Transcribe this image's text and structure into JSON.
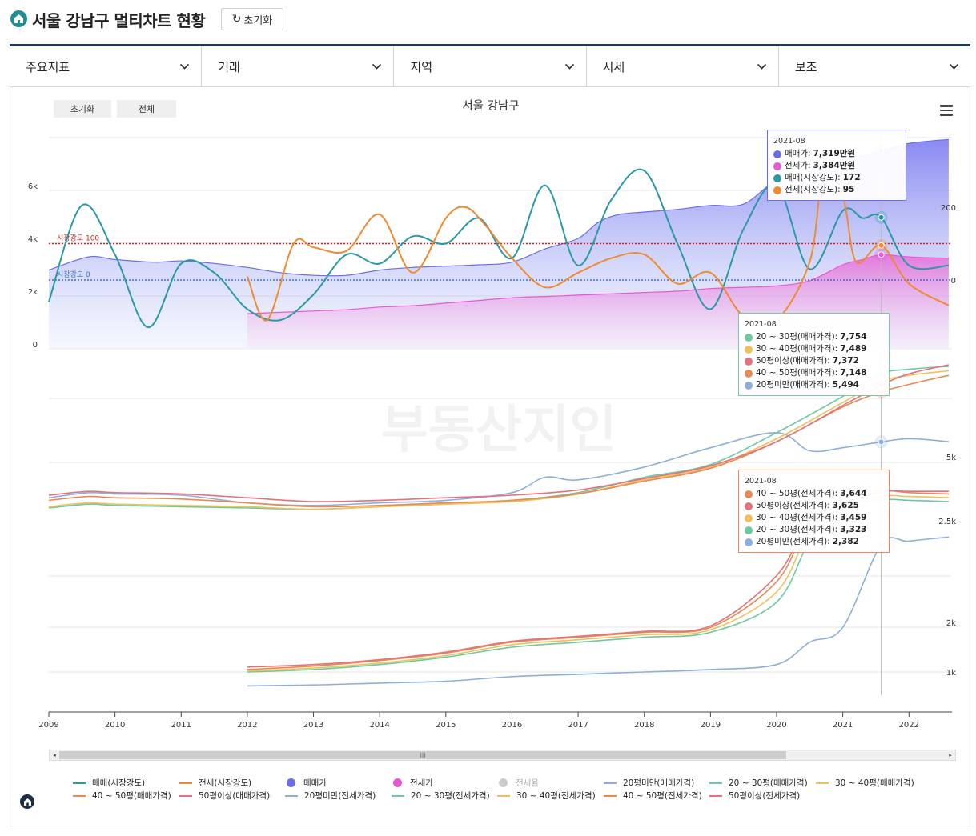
{
  "header": {
    "title": "서울 강남구 멀티차트 현황",
    "reset_label": "초기화"
  },
  "tabs": [
    {
      "label": "주요지표"
    },
    {
      "label": "거래"
    },
    {
      "label": "지역"
    },
    {
      "label": "시세"
    },
    {
      "label": "보조"
    }
  ],
  "chart": {
    "title": "서울 강남구",
    "reset_button": "초기화",
    "all_button": "전체",
    "watermark": "부동산지인"
  },
  "chart_data": {
    "type": "line",
    "x_axis": {
      "ticks": [
        "2009",
        "2010",
        "2011",
        "2012",
        "2013",
        "2014",
        "2015",
        "2016",
        "2017",
        "2018",
        "2019",
        "2020",
        "2021",
        "2022"
      ]
    },
    "panels": [
      {
        "name": "top",
        "left_axis_ticks": [
          "0",
          "2k",
          "4k",
          "6k"
        ],
        "right_axis_ticks": [
          "0",
          "200"
        ],
        "reference_lines": [
          {
            "label": "시장강도 100",
            "color": "#d42020"
          },
          {
            "label": "시장강도 0",
            "color": "#3a6fd0"
          }
        ],
        "series": [
          {
            "name": "매매가",
            "color": "#6b6ee8",
            "type": "area",
            "x": [
              2009.0,
              2009.6,
              2010.0,
              2010.6,
              2011.0,
              2011.5,
              2012.0,
              2012.5,
              2013.0,
              2013.5,
              2014.0,
              2014.5,
              2015.0,
              2015.5,
              2016.0,
              2016.5,
              2017.0,
              2017.3,
              2017.6,
              2018.0,
              2018.5,
              2019.0,
              2019.5,
              2020.0,
              2020.5,
              2021.0,
              2021.3,
              2021.58,
              2022.0,
              2022.6
            ],
            "values": [
              2800,
              3300,
              3200,
              3100,
              3150,
              3050,
              2900,
              2700,
              2600,
              2600,
              2800,
              2900,
              2950,
              3000,
              3100,
              3600,
              4000,
              4600,
              4900,
              5000,
              5100,
              5250,
              5300,
              6200,
              6400,
              7000,
              7150,
              7319,
              7600,
              7750
            ]
          },
          {
            "name": "전세가",
            "color": "#e659d4",
            "type": "area",
            "x": [
              2012.0,
              2012.5,
              2013.0,
              2013.5,
              2014.0,
              2014.5,
              2015.0,
              2015.5,
              2016.0,
              2016.5,
              2017.0,
              2017.5,
              2018.0,
              2018.5,
              2019.0,
              2019.5,
              2020.0,
              2020.5,
              2021.0,
              2021.3,
              2021.58,
              2022.0,
              2022.6
            ],
            "values": [
              1150,
              1200,
              1250,
              1300,
              1400,
              1450,
              1550,
              1650,
              1750,
              1800,
              1850,
              1900,
              1950,
              2000,
              2100,
              2150,
              2200,
              2400,
              3000,
              3200,
              3384,
              3300,
              3250
            ]
          },
          {
            "name": "매매(시장강도)",
            "color": "#2a98a5",
            "x": [
              2009.0,
              2009.5,
              2010.0,
              2010.5,
              2011.0,
              2011.5,
              2012.0,
              2012.5,
              2013.0,
              2013.5,
              2014.0,
              2014.5,
              2015.0,
              2015.5,
              2016.0,
              2016.5,
              2017.0,
              2017.5,
              2018.0,
              2018.5,
              2019.0,
              2019.5,
              2020.0,
              2020.5,
              2021.0,
              2021.3,
              2021.58,
              2022.0,
              2022.6
            ],
            "values": [
              -60,
              205,
              70,
              -130,
              45,
              20,
              -80,
              -110,
              -40,
              70,
              45,
              120,
              100,
              170,
              60,
              260,
              40,
              220,
              300,
              100,
              -80,
              140,
              260,
              30,
              190,
              170,
              172,
              40,
              40
            ]
          },
          {
            "name": "전세(시장강도)",
            "color": "#f08a2e",
            "x": [
              2012.0,
              2012.3,
              2012.7,
              2013.0,
              2013.5,
              2014.0,
              2014.5,
              2015.0,
              2015.3,
              2015.6,
              2016.0,
              2016.5,
              2017.0,
              2017.5,
              2018.0,
              2018.5,
              2019.0,
              2019.5,
              2020.0,
              2020.5,
              2020.7,
              2021.0,
              2021.2,
              2021.58,
              2022.0,
              2022.6
            ],
            "values": [
              10,
              -110,
              100,
              90,
              80,
              180,
              20,
              170,
              200,
              150,
              60,
              -20,
              20,
              60,
              70,
              -10,
              20,
              -100,
              -110,
              50,
              280,
              230,
              50,
              95,
              -10,
              -70
            ]
          }
        ]
      },
      {
        "name": "bottom",
        "right_axis_ticks": [
          "1k",
          "2k",
          "2.5k",
          "5k"
        ],
        "series": [
          {
            "name": "20평미만(매매가격)",
            "color": "#8eaedb",
            "x": [
              2009,
              2009.6,
              2010,
              2011,
              2012,
              2013,
              2014,
              2015,
              2016,
              2016.5,
              2017,
              2018,
              2019,
              2020,
              2020.5,
              2021,
              2021.58,
              2022,
              2022.6
            ],
            "values": [
              3400,
              3600,
              3550,
              3500,
              3200,
              3100,
              3200,
              3300,
              3600,
              4200,
              4100,
              4600,
              5300,
              5800,
              5200,
              5300,
              5494,
              5600,
              5500
            ]
          },
          {
            "name": "20~30평(매매가격)",
            "color": "#6cc9a0",
            "x": [
              2009,
              2009.6,
              2010,
              2011,
              2012,
              2013,
              2014,
              2015,
              2016,
              2017,
              2018,
              2019,
              2020,
              2021,
              2021.58,
              2022,
              2022.6
            ],
            "values": [
              3000,
              3150,
              3100,
              3050,
              3000,
              2950,
              3050,
              3150,
              3300,
              3600,
              4200,
              4700,
              5800,
              7000,
              7754,
              7900,
              8000
            ]
          },
          {
            "name": "30~40평(매매가격)",
            "color": "#f0c05c",
            "x": [
              2009,
              2009.6,
              2010,
              2011,
              2012,
              2013,
              2014,
              2015,
              2016,
              2017,
              2018,
              2019,
              2020,
              2021,
              2021.58,
              2022,
              2022.6
            ],
            "values": [
              3050,
              3200,
              3150,
              3100,
              3050,
              2950,
              3050,
              3150,
              3250,
              3550,
              4100,
              4600,
              5600,
              6800,
              7489,
              7700,
              7850
            ]
          },
          {
            "name": "40~50평(매매가격)",
            "color": "#e88a52",
            "x": [
              2009,
              2009.6,
              2010,
              2011,
              2012,
              2013,
              2014,
              2015,
              2016,
              2017,
              2018,
              2019,
              2020,
              2021,
              2021.58,
              2022,
              2022.6
            ],
            "values": [
              3300,
              3450,
              3400,
              3350,
              3200,
              3050,
              3100,
              3200,
              3300,
              3550,
              4050,
              4550,
              5500,
              6650,
              7148,
              7400,
              7700
            ]
          },
          {
            "name": "50평이상(매매가격)",
            "color": "#e5717e",
            "x": [
              2009,
              2009.6,
              2010,
              2011,
              2012,
              2013,
              2014,
              2015,
              2016,
              2017,
              2018,
              2019,
              2020,
              2021,
              2021.58,
              2022,
              2022.6
            ],
            "values": [
              3500,
              3650,
              3600,
              3550,
              3400,
              3250,
              3300,
              3400,
              3500,
              3700,
              4150,
              4650,
              5500,
              6700,
              7372,
              7750,
              8050
            ]
          },
          {
            "name": "20평미만(전세가격)",
            "color": "#8eaedb",
            "x": [
              2012,
              2013,
              2014,
              2015,
              2016,
              2017,
              2018,
              2019,
              2020,
              2020.5,
              2021,
              2021.58,
              2022,
              2022.6
            ],
            "values": [
              700,
              720,
              760,
              800,
              900,
              950,
              1000,
              1050,
              1150,
              1600,
              1900,
              2382,
              2400,
              2420
            ]
          },
          {
            "name": "20~30평(전세가격)",
            "color": "#6cc9a0",
            "x": [
              2012,
              2013,
              2014,
              2015,
              2016,
              2017,
              2018,
              2019,
              2020,
              2020.5,
              2021,
              2021.58,
              2022,
              2022.6
            ],
            "values": [
              1000,
              1050,
              1150,
              1300,
              1500,
              1600,
              1700,
              1800,
              2100,
              2400,
              3000,
              3323,
              3300,
              3250
            ]
          },
          {
            "name": "30~40평(전세가격)",
            "color": "#f0c05c",
            "x": [
              2012,
              2013,
              2014,
              2015,
              2016,
              2017,
              2018,
              2019,
              2020,
              2020.5,
              2021,
              2021.58,
              2022,
              2022.6
            ],
            "values": [
              1020,
              1080,
              1180,
              1330,
              1550,
              1650,
              1750,
              1850,
              2150,
              2450,
              3050,
              3459,
              3450,
              3400
            ]
          },
          {
            "name": "40~50평(전세가격)",
            "color": "#e88a52",
            "x": [
              2012,
              2013,
              2014,
              2015,
              2016,
              2017,
              2018,
              2019,
              2020,
              2020.5,
              2021,
              2021.58,
              2022,
              2022.6
            ],
            "values": [
              1050,
              1120,
              1230,
              1380,
              1600,
              1700,
              1800,
              1900,
              2200,
              2500,
              3100,
              3644,
              3600,
              3550
            ]
          },
          {
            "name": "50평이상(전세가격)",
            "color": "#e5717e",
            "x": [
              2012,
              2013,
              2014,
              2015,
              2016,
              2017,
              2018,
              2019,
              2020,
              2020.5,
              2021,
              2021.58,
              2022,
              2022.6
            ],
            "values": [
              1100,
              1150,
              1250,
              1400,
              1620,
              1720,
              1820,
              1930,
              2230,
              2550,
              3150,
              3625,
              3650,
              3650
            ]
          }
        ]
      }
    ]
  },
  "tooltips": [
    {
      "date": "2021-08",
      "border": "#6b6ee8",
      "rows": [
        {
          "label": "매매가:",
          "value": "7,319만원",
          "color": "#6b6ee8"
        },
        {
          "label": "전세가:",
          "value": "3,384만원",
          "color": "#e659d4"
        },
        {
          "label": "매매(시장강도):",
          "value": "172",
          "color": "#2a98a5"
        },
        {
          "label": "전세(시장강도):",
          "value": "95",
          "color": "#f08a2e"
        }
      ]
    },
    {
      "date": "2021-08",
      "border": "#7cc7a5",
      "rows": [
        {
          "label": "20 ~ 30평(매매가격):",
          "value": "7,754",
          "color": "#6cc9a0"
        },
        {
          "label": "30 ~ 40평(매매가격):",
          "value": "7,489",
          "color": "#f0c05c"
        },
        {
          "label": "50평이상(매매가격):",
          "value": "7,372",
          "color": "#e5717e"
        },
        {
          "label": "40 ~ 50평(매매가격):",
          "value": "7,148",
          "color": "#e88a52"
        },
        {
          "label": "20평미만(매매가격):",
          "value": "5,494",
          "color": "#8eaedb"
        }
      ]
    },
    {
      "date": "2021-08",
      "border": "#e88a52",
      "rows": [
        {
          "label": "40 ~ 50평(전세가격):",
          "value": "3,644",
          "color": "#e88a52"
        },
        {
          "label": "50평이상(전세가격):",
          "value": "3,625",
          "color": "#e5717e"
        },
        {
          "label": "30 ~ 40평(전세가격):",
          "value": "3,459",
          "color": "#f0c05c"
        },
        {
          "label": "20 ~ 30평(전세가격):",
          "value": "3,323",
          "color": "#6cc9a0"
        },
        {
          "label": "20평미만(전세가격):",
          "value": "2,382",
          "color": "#8eaedb"
        }
      ]
    }
  ],
  "legend": [
    {
      "label": "매매(시장강도)",
      "color": "#2a98a5",
      "kind": "line"
    },
    {
      "label": "전세(시장강도)",
      "color": "#f08a2e",
      "kind": "line"
    },
    {
      "label": "매매가",
      "color": "#6b6ee8",
      "kind": "dot"
    },
    {
      "label": "전세가",
      "color": "#e659d4",
      "kind": "dot"
    },
    {
      "label": "전세율",
      "color": "#cccccc",
      "kind": "dot",
      "muted": true
    },
    {
      "label": "20평미만(매매가격)",
      "color": "#8eaedb",
      "kind": "line"
    },
    {
      "label": "20 ~ 30평(매매가격)",
      "color": "#6cc9a0",
      "kind": "line"
    },
    {
      "label": "30 ~ 40평(매매가격)",
      "color": "#f0c05c",
      "kind": "line"
    },
    {
      "label": "40 ~ 50평(매매가격)",
      "color": "#e88a52",
      "kind": "line"
    },
    {
      "label": "50평이상(매매가격)",
      "color": "#e5717e",
      "kind": "line"
    },
    {
      "label": "20평미만(전세가격)",
      "color": "#8eaedb",
      "kind": "line"
    },
    {
      "label": "20 ~ 30평(전세가격)",
      "color": "#6cc9a0",
      "kind": "line"
    },
    {
      "label": "30 ~ 40평(전세가격)",
      "color": "#f0c05c",
      "kind": "line"
    },
    {
      "label": "40 ~ 50평(전세가격)",
      "color": "#e88a52",
      "kind": "line"
    },
    {
      "label": "50평이상(전세가격)",
      "color": "#e5717e",
      "kind": "line"
    }
  ],
  "scrollbar": {
    "grip": "III"
  }
}
